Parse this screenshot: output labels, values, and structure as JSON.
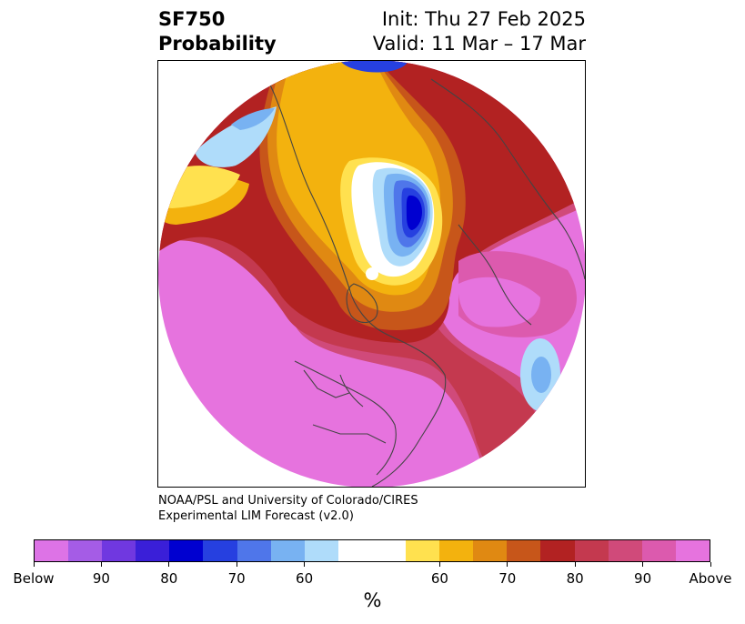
{
  "title": {
    "left_line1": "SF750",
    "left_line2": "Probability",
    "right_line1": "Init: Thu 27 Feb 2025",
    "right_line2": "Valid: 11 Mar – 17 Mar"
  },
  "credit": {
    "line1": "NOAA/PSL and University of Colorado/CIRES",
    "line2": "Experimental LIM Forecast (v2.0)"
  },
  "colorbar": {
    "unit_label": "%",
    "colors": [
      "#dd73e6",
      "#a55ce6",
      "#7038e0",
      "#3a1fd8",
      "#0000d0",
      "#2640e0",
      "#4f76ea",
      "#78b2f2",
      "#afdcfa",
      "#ffffff",
      "#ffffff",
      "#ffe14f",
      "#f3b20e",
      "#e08912",
      "#c7561a",
      "#b22222",
      "#c4394f",
      "#d04a7a",
      "#dc5aae",
      "#e673de"
    ],
    "ticks": [
      "Below",
      "90",
      "80",
      "70",
      "60",
      "60",
      "70",
      "80",
      "90",
      "Above"
    ]
  },
  "map": {
    "projection": "north-polar-stereographic",
    "colors": {
      "pink": "#e673de",
      "pink2": "#dc5aae",
      "rose": "#d04a7a",
      "crimson": "#c4394f",
      "red": "#b22222",
      "orange_red": "#c7561a",
      "orange": "#e08912",
      "gold": "#f3b20e",
      "yellow": "#ffe14f",
      "light_blue": "#afdcfa",
      "sky_blue": "#78b2f2",
      "blue": "#4f76ea",
      "royal_blue": "#2640e0",
      "deep_blue": "#0000d0",
      "coastline": "#444444"
    }
  }
}
